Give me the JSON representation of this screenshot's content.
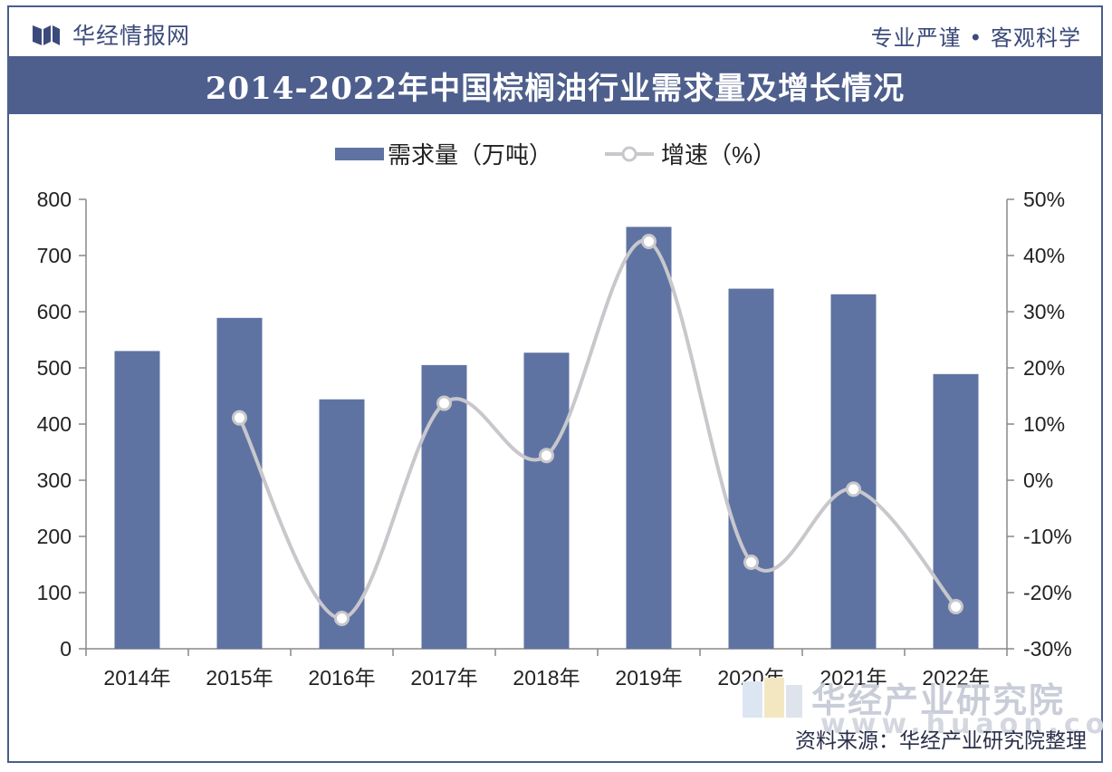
{
  "header": {
    "brand": "华经情报网",
    "slogan": "专业严谨 • 客观科学"
  },
  "colors": {
    "bar": "#5f73a3",
    "line": "#c8c8cc",
    "title_bg": "#4e5f8d"
  },
  "chart_data": {
    "type": "bar",
    "title": "2014-2022年中国棕榈油行业需求量及增长情况",
    "categories": [
      "2014年",
      "2015年",
      "2016年",
      "2017年",
      "2018年",
      "2019年",
      "2020年",
      "2021年",
      "2022年"
    ],
    "series": [
      {
        "name": "需求量（万吨）",
        "type": "bar",
        "axis": "left",
        "values": [
          530,
          589,
          444,
          505,
          527,
          751,
          641,
          631,
          489
        ]
      },
      {
        "name": "增速（%）",
        "type": "line",
        "axis": "right",
        "values": [
          null,
          11.1,
          -24.6,
          13.7,
          4.4,
          42.5,
          -14.6,
          -1.6,
          -22.5
        ]
      }
    ],
    "y_left": {
      "min": 0,
      "max": 800,
      "ticks": [
        "0",
        "100",
        "200",
        "300",
        "400",
        "500",
        "600",
        "700",
        "800"
      ]
    },
    "y_right": {
      "min": -30,
      "max": 50,
      "ticks": [
        "-30%",
        "-20%",
        "-10%",
        "0%",
        "10%",
        "20%",
        "30%",
        "40%",
        "50%"
      ]
    },
    "legend_position": "top-center",
    "grid": false
  },
  "footer": {
    "source": "资料来源：华经产业研究院整理",
    "watermark_text": "华经产业研究院",
    "watermark_url": "www.huaon.com"
  }
}
